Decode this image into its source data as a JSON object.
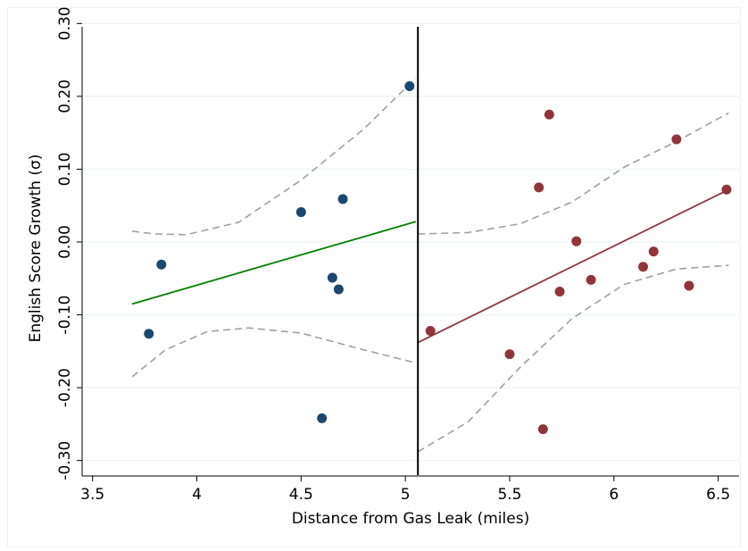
{
  "chart_data": {
    "type": "scatter",
    "title": "",
    "xlabel": "Distance from Gas Leak (miles)",
    "ylabel": "English Score Growth (σ)",
    "xlim": [
      3.45,
      6.6
    ],
    "ylim": [
      -0.32,
      0.32
    ],
    "xticks": [
      3.5,
      4,
      4.5,
      5,
      5.5,
      6,
      6.5
    ],
    "xtick_labels": [
      "3.5",
      "4",
      "4.5",
      "5",
      "5.5",
      "6",
      "6.5"
    ],
    "yticks": [
      -0.3,
      -0.2,
      -0.1,
      0.0,
      0.1,
      0.2,
      0.3
    ],
    "ytick_labels": [
      "-0.30",
      "-0.20",
      "-0.10",
      "0.00",
      "0.10",
      "0.20",
      "0.30"
    ],
    "grid": true,
    "cutoff": 5.06,
    "colors": {
      "left_points": "#1a476f",
      "right_points": "#90353b",
      "left_fit": "#008000",
      "right_fit": "#90353b",
      "ci": "#a0a0a0",
      "cutoff": "#000000",
      "grid": "#eaf2f3"
    },
    "series": [
      {
        "group": "left",
        "points": [
          [
            3.77,
            -0.126
          ],
          [
            3.83,
            -0.031
          ],
          [
            4.5,
            0.041
          ],
          [
            4.65,
            -0.049
          ],
          [
            4.68,
            -0.065
          ],
          [
            4.7,
            0.059
          ],
          [
            4.6,
            -0.242
          ],
          [
            5.02,
            0.214
          ]
        ],
        "fit": [
          [
            3.69,
            -0.085
          ],
          [
            5.05,
            0.028
          ]
        ],
        "ci_upper": [
          [
            3.69,
            0.015
          ],
          [
            3.8,
            0.011
          ],
          [
            3.95,
            0.01
          ],
          [
            4.2,
            0.027
          ],
          [
            4.5,
            0.085
          ],
          [
            4.8,
            0.155
          ],
          [
            5.05,
            0.225
          ]
        ],
        "ci_lower": [
          [
            3.69,
            -0.185
          ],
          [
            3.85,
            -0.148
          ],
          [
            4.05,
            -0.123
          ],
          [
            4.25,
            -0.118
          ],
          [
            4.5,
            -0.125
          ],
          [
            4.8,
            -0.148
          ],
          [
            5.05,
            -0.166
          ]
        ]
      },
      {
        "group": "right",
        "points": [
          [
            5.12,
            -0.122
          ],
          [
            5.5,
            -0.154
          ],
          [
            5.64,
            0.075
          ],
          [
            5.66,
            -0.257
          ],
          [
            5.69,
            0.175
          ],
          [
            5.74,
            -0.068
          ],
          [
            5.82,
            0.001
          ],
          [
            5.89,
            -0.052
          ],
          [
            6.14,
            -0.034
          ],
          [
            6.19,
            -0.013
          ],
          [
            6.3,
            0.141
          ],
          [
            6.36,
            -0.06
          ],
          [
            6.54,
            0.072
          ]
        ],
        "fit": [
          [
            5.06,
            -0.138
          ],
          [
            6.55,
            0.072
          ]
        ],
        "ci_upper": [
          [
            5.06,
            0.011
          ],
          [
            5.3,
            0.013
          ],
          [
            5.55,
            0.025
          ],
          [
            5.8,
            0.055
          ],
          [
            6.05,
            0.103
          ],
          [
            6.3,
            0.138
          ],
          [
            6.55,
            0.177
          ]
        ],
        "ci_lower": [
          [
            5.06,
            -0.288
          ],
          [
            5.3,
            -0.247
          ],
          [
            5.55,
            -0.172
          ],
          [
            5.8,
            -0.105
          ],
          [
            6.05,
            -0.058
          ],
          [
            6.3,
            -0.037
          ],
          [
            6.55,
            -0.032
          ]
        ]
      }
    ]
  }
}
